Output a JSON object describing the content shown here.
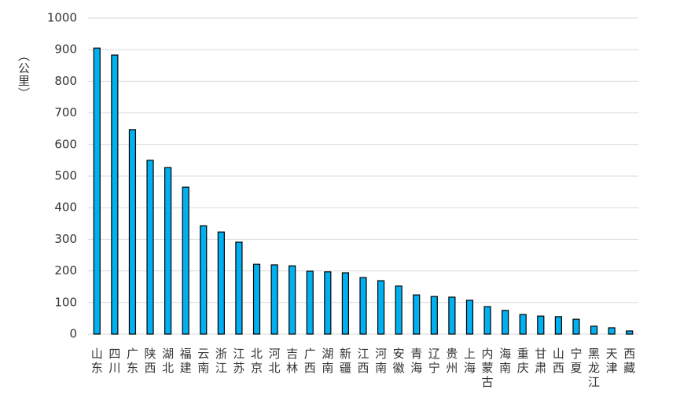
{
  "chart_data": {
    "type": "bar",
    "y_label": "（公里）",
    "categories": [
      "山东",
      "四川",
      "广东",
      "陕西",
      "湖北",
      "福建",
      "云南",
      "浙江",
      "江苏",
      "北京",
      "河北",
      "吉林",
      "广西",
      "湖南",
      "新疆",
      "江西",
      "河南",
      "安徽",
      "青海",
      "辽宁",
      "贵州",
      "上海",
      "内蒙古",
      "海南",
      "重庆",
      "甘肃",
      "山西",
      "宁夏",
      "黑龙江",
      "天津",
      "西藏"
    ],
    "values": [
      905,
      883,
      647,
      550,
      527,
      465,
      343,
      323,
      291,
      221,
      219,
      216,
      199,
      197,
      194,
      179,
      169,
      152,
      124,
      119,
      117,
      107,
      87,
      75,
      62,
      57,
      55,
      47,
      25,
      20,
      10
    ],
    "color": "#00b0f0",
    "ylim": [
      0,
      1000
    ],
    "yticks": [
      0,
      100,
      200,
      300,
      400,
      500,
      600,
      700,
      800,
      900,
      1000
    ],
    "grid": true
  }
}
